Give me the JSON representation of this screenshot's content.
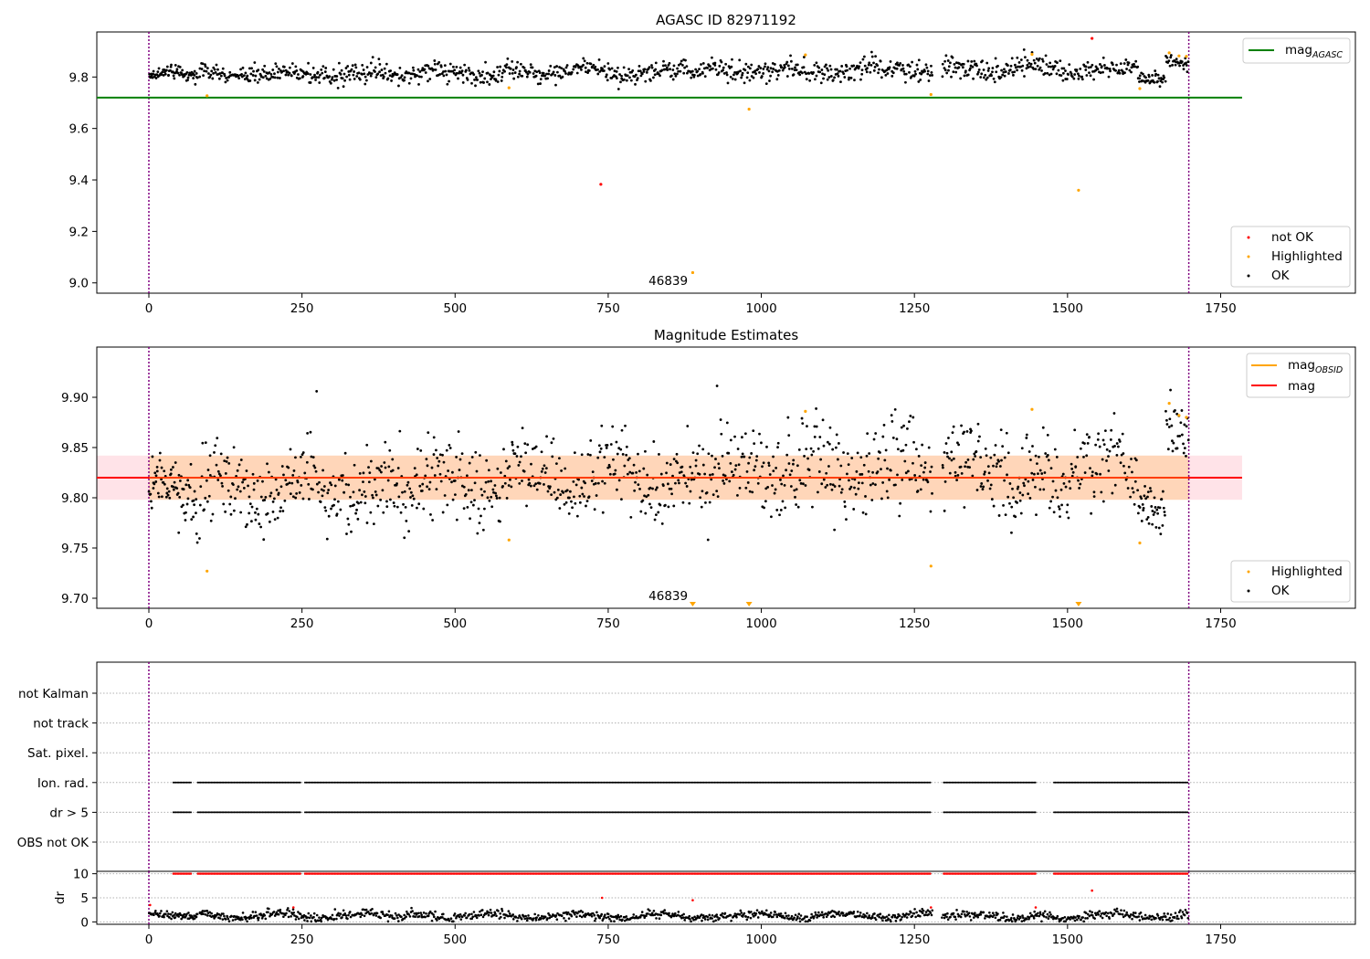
{
  "chart_data": [
    {
      "type": "scatter",
      "title": "AGASC ID 82971192",
      "xlabel": "",
      "ylabel": "",
      "xlim": [
        -85,
        1970
      ],
      "ylim": [
        8.96,
        9.975
      ],
      "xticks": [
        0,
        250,
        500,
        750,
        1000,
        1250,
        1500,
        1750
      ],
      "xtick_labels": [
        "0",
        "250",
        "500",
        "750",
        "1000",
        "1250",
        "1500",
        "1750"
      ],
      "yticks": [
        9.0,
        9.2,
        9.4,
        9.6,
        9.8
      ],
      "ytick_labels": [
        "9.0",
        "9.2",
        "9.4",
        "9.6",
        "9.8"
      ],
      "grid": false,
      "vlines": [
        0,
        1698
      ],
      "obsid_label": "46839",
      "obsid_label_x": 848,
      "mag_agasc": 9.72,
      "mag_agasc_x_end": 1785,
      "legend_top": {
        "placement": "top-right",
        "entries": [
          {
            "label_main": "mag",
            "label_sub": "AGASC",
            "color": "#008000"
          }
        ]
      },
      "legend_bottom": {
        "placement": "bottom-right",
        "entries": [
          {
            "label": "not OK",
            "color": "#ff0000"
          },
          {
            "label": "Highlighted",
            "color": "#ffa500"
          },
          {
            "label": "OK",
            "color": "#000000"
          }
        ]
      },
      "series": [
        {
          "name": "not OK",
          "color": "#ff0000",
          "points": [
            [
              738,
              9.383
            ],
            [
              1540,
              9.95
            ]
          ]
        },
        {
          "name": "Highlighted",
          "color": "#ffa500",
          "points": [
            [
              95,
              9.727
            ],
            [
              588,
              9.758
            ],
            [
              888,
              9.04
            ],
            [
              980,
              9.675
            ],
            [
              1072,
              9.886
            ],
            [
              1277,
              9.732
            ],
            [
              1442,
              9.888
            ],
            [
              1518,
              9.36
            ],
            [
              1618,
              9.755
            ],
            [
              1666,
              9.894
            ],
            [
              1682,
              9.882
            ],
            [
              1694,
              9.88
            ]
          ]
        }
      ],
      "ok_segments": [
        {
          "x": [
            0,
            80
          ],
          "base": 9.805,
          "amp": 0.025,
          "noise": 0.012,
          "n": 75
        },
        {
          "x": [
            82,
            420
          ],
          "base": 9.81,
          "amp": 0.02,
          "noise": 0.018,
          "n": 260
        },
        {
          "x": [
            420,
            580
          ],
          "base": 9.815,
          "amp": 0.025,
          "noise": 0.018,
          "n": 120
        },
        {
          "x": [
            580,
            900
          ],
          "base": 9.82,
          "amp": 0.02,
          "noise": 0.018,
          "n": 240
        },
        {
          "x": [
            900,
            1280
          ],
          "base": 9.828,
          "amp": 0.02,
          "noise": 0.02,
          "n": 280
        },
        {
          "x": [
            1295,
            1450
          ],
          "base": 9.83,
          "amp": 0.02,
          "noise": 0.02,
          "n": 120
        },
        {
          "x": [
            1450,
            1615
          ],
          "base": 9.83,
          "amp": 0.02,
          "noise": 0.02,
          "n": 120
        },
        {
          "x": [
            1615,
            1660
          ],
          "base": 9.79,
          "amp": 0.01,
          "noise": 0.012,
          "n": 40
        },
        {
          "x": [
            1660,
            1698
          ],
          "base": 9.86,
          "amp": 0.01,
          "noise": 0.014,
          "n": 30
        }
      ],
      "ok_color": "#000000"
    },
    {
      "type": "scatter",
      "title": "Magnitude Estimates",
      "xlabel": "",
      "ylabel": "",
      "xlim": [
        -85,
        1970
      ],
      "ylim": [
        9.69,
        9.95
      ],
      "xticks": [
        0,
        250,
        500,
        750,
        1000,
        1250,
        1500,
        1750
      ],
      "xtick_labels": [
        "0",
        "250",
        "500",
        "750",
        "1000",
        "1250",
        "1500",
        "1750"
      ],
      "yticks": [
        9.7,
        9.75,
        9.8,
        9.85,
        9.9
      ],
      "ytick_labels": [
        "9.70",
        "9.75",
        "9.80",
        "9.85",
        "9.90"
      ],
      "grid": false,
      "vlines": [
        0,
        1698
      ],
      "obsid_label": "46839",
      "obsid_label_x": 848,
      "mag": 9.82,
      "mag_band": [
        9.798,
        9.842
      ],
      "mag_obsid_band": [
        9.798,
        9.842
      ],
      "band_x": [
        -85,
        1785
      ],
      "obsid_band_x": [
        0,
        1698
      ],
      "legend_top": {
        "placement": "top-right",
        "entries": [
          {
            "label_main": "mag",
            "label_sub": "OBSID",
            "color": "#ffa500"
          },
          {
            "label_main": "mag",
            "label_sub": "",
            "color": "#ff0000"
          }
        ]
      },
      "legend_bottom": {
        "placement": "bottom-right",
        "entries": [
          {
            "label": "Highlighted",
            "color": "#ffa500"
          },
          {
            "label": "OK",
            "color": "#000000"
          }
        ]
      },
      "series": [
        {
          "name": "Highlighted",
          "color": "#ffa500",
          "points": [
            [
              95,
              9.727
            ],
            [
              588,
              9.758
            ],
            [
              1072,
              9.886
            ],
            [
              1277,
              9.732
            ],
            [
              1442,
              9.888
            ],
            [
              1618,
              9.755
            ],
            [
              1666,
              9.894
            ],
            [
              1682,
              9.882
            ],
            [
              1694,
              9.88
            ]
          ]
        }
      ],
      "offscale_markers": [
        [
          888,
          9.69
        ],
        [
          980,
          9.69
        ],
        [
          1518,
          9.69
        ]
      ],
      "ok_segments": [
        {
          "x": [
            0,
            80
          ],
          "base": 9.805,
          "amp": 0.02,
          "noise": 0.015,
          "n": 75
        },
        {
          "x": [
            82,
            420
          ],
          "base": 9.808,
          "amp": 0.02,
          "noise": 0.018,
          "n": 260
        },
        {
          "x": [
            420,
            580
          ],
          "base": 9.815,
          "amp": 0.02,
          "noise": 0.02,
          "n": 120
        },
        {
          "x": [
            580,
            900
          ],
          "base": 9.82,
          "amp": 0.02,
          "noise": 0.02,
          "n": 240
        },
        {
          "x": [
            900,
            1280
          ],
          "base": 9.828,
          "amp": 0.02,
          "noise": 0.022,
          "n": 280
        },
        {
          "x": [
            1295,
            1450
          ],
          "base": 9.83,
          "amp": 0.02,
          "noise": 0.022,
          "n": 120
        },
        {
          "x": [
            1450,
            1615
          ],
          "base": 9.828,
          "amp": 0.02,
          "noise": 0.02,
          "n": 120
        },
        {
          "x": [
            1615,
            1660
          ],
          "base": 9.785,
          "amp": 0.01,
          "noise": 0.012,
          "n": 40
        },
        {
          "x": [
            1660,
            1698
          ],
          "base": 9.86,
          "amp": 0.01,
          "noise": 0.014,
          "n": 30
        }
      ],
      "ok_color": "#000000"
    },
    {
      "type": "scatter",
      "title": "",
      "xlim": [
        -85,
        1970
      ],
      "xticks": [
        0,
        250,
        500,
        750,
        1000,
        1250,
        1500,
        1750
      ],
      "xtick_labels": [
        "0",
        "250",
        "500",
        "750",
        "1000",
        "1250",
        "1500",
        "1750"
      ],
      "vlines": [
        0,
        1698
      ],
      "flag_rows": [
        "not Kalman",
        "not track",
        "Sat. pixel.",
        "Ion. rad.",
        "dr > 5",
        "OBS not OK"
      ],
      "flagged_ranges": {
        "Ion. rad.": [
          [
            40,
            70
          ],
          [
            80,
            248
          ],
          [
            255,
            1278
          ],
          [
            1298,
            1448
          ],
          [
            1478,
            1698
          ]
        ],
        "dr > 5": [
          [
            40,
            70
          ],
          [
            80,
            248
          ],
          [
            255,
            1278
          ],
          [
            1298,
            1448
          ],
          [
            1478,
            1698
          ]
        ]
      },
      "grid": true,
      "dr": {
        "ylabel": "dr",
        "ylim": [
          -0.5,
          10.5
        ],
        "yticks": [
          0,
          5,
          10
        ],
        "ytick_labels": [
          "0",
          "5",
          "10"
        ],
        "clip_value": 10,
        "clipped_color": "#ff0000",
        "clipped_ranges": [
          [
            40,
            70
          ],
          [
            80,
            248
          ],
          [
            255,
            1278
          ],
          [
            1298,
            1448
          ],
          [
            1478,
            1698
          ]
        ],
        "red_points": [
          [
            2,
            3.5
          ],
          [
            236,
            3.0
          ],
          [
            740,
            5.0
          ],
          [
            888,
            4.5
          ],
          [
            1277,
            3.0
          ],
          [
            1448,
            3.0
          ],
          [
            1540,
            6.5
          ]
        ],
        "ok_segments": [
          {
            "x": [
              0,
              80
            ],
            "base": 1.5,
            "amp": 0.6,
            "noise": 0.35,
            "n": 70
          },
          {
            "x": [
              82,
              420
            ],
            "base": 1.3,
            "amp": 0.8,
            "noise": 0.45,
            "n": 250
          },
          {
            "x": [
              420,
              900
            ],
            "base": 1.2,
            "amp": 0.8,
            "noise": 0.45,
            "n": 340
          },
          {
            "x": [
              900,
              1280
            ],
            "base": 1.3,
            "amp": 0.8,
            "noise": 0.45,
            "n": 270
          },
          {
            "x": [
              1295,
              1450
            ],
            "base": 1.2,
            "amp": 0.7,
            "noise": 0.45,
            "n": 110
          },
          {
            "x": [
              1450,
              1698
            ],
            "base": 1.2,
            "amp": 0.8,
            "noise": 0.45,
            "n": 170
          }
        ],
        "ok_color": "#000000"
      }
    }
  ]
}
